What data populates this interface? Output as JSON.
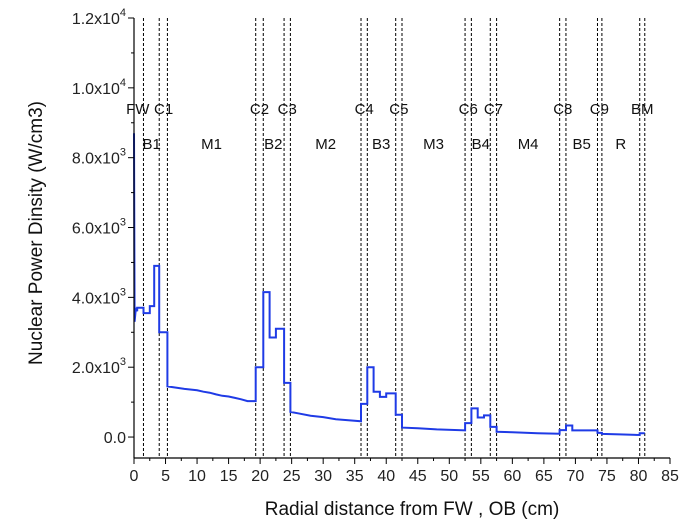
{
  "chart_data": {
    "type": "line",
    "title": "",
    "xlabel": "Radial distance from FW , OB (cm)",
    "ylabel": "Nuclear Power Dinsity (W/cm3)",
    "xlim": [
      0,
      85
    ],
    "ylim": [
      -600,
      12000
    ],
    "xticks": [
      0,
      5,
      10,
      15,
      20,
      25,
      30,
      35,
      40,
      45,
      50,
      55,
      60,
      65,
      70,
      75,
      80,
      85
    ],
    "yticks": [
      {
        "value": 0,
        "mantissa": "0.0",
        "exp": ""
      },
      {
        "value": 2000,
        "mantissa": "2.0x10",
        "exp": "3"
      },
      {
        "value": 4000,
        "mantissa": "4.0x10",
        "exp": "3"
      },
      {
        "value": 6000,
        "mantissa": "6.0x10",
        "exp": "3"
      },
      {
        "value": 8000,
        "mantissa": "8.0x10",
        "exp": "3"
      },
      {
        "value": 10000,
        "mantissa": "1.0x10",
        "exp": "4"
      },
      {
        "value": 12000,
        "mantissa": "1.2x10",
        "exp": "4"
      }
    ],
    "boundaries": [
      1.5,
      4,
      5.3,
      19.3,
      20.5,
      23.8,
      24.8,
      36,
      37,
      41.5,
      42.5,
      52.5,
      53.5,
      56.5,
      57.5,
      67.5,
      68.5,
      73.5,
      74.2,
      80.2,
      81
    ],
    "top_labels": [
      {
        "text": "FW",
        "x": 0.6
      },
      {
        "text": "C1",
        "x": 4.7
      },
      {
        "text": "C2",
        "x": 19.9
      },
      {
        "text": "C3",
        "x": 24.3
      },
      {
        "text": "C4",
        "x": 36.5
      },
      {
        "text": "C5",
        "x": 42.0
      },
      {
        "text": "C6",
        "x": 53.0
      },
      {
        "text": "C7",
        "x": 57.0
      },
      {
        "text": "C8",
        "x": 68.0
      },
      {
        "text": "C9",
        "x": 73.8
      },
      {
        "text": "BM",
        "x": 80.6
      }
    ],
    "region_labels": [
      {
        "text": "B1",
        "x": 2.8
      },
      {
        "text": "M1",
        "x": 12.3
      },
      {
        "text": "B2",
        "x": 22.1
      },
      {
        "text": "M2",
        "x": 30.4
      },
      {
        "text": "B3",
        "x": 39.2
      },
      {
        "text": "M3",
        "x": 47.5
      },
      {
        "text": "B4",
        "x": 55.0
      },
      {
        "text": "M4",
        "x": 62.5
      },
      {
        "text": "B5",
        "x": 71.0
      },
      {
        "text": "R",
        "x": 77.2
      }
    ],
    "series": [
      {
        "color": "#1f3be6",
        "x": [
          0,
          0.1,
          0.3,
          0.5,
          0.5,
          1.5,
          1.5,
          2.5,
          2.5,
          3.2,
          3.2,
          4.0,
          4.0,
          5.3,
          5.3,
          8.0,
          10.0,
          11.0,
          12.0,
          13.0,
          14.0,
          15.0,
          16.0,
          17.0,
          18.0,
          19.3,
          19.3,
          20.5,
          20.5,
          21.5,
          21.5,
          22.5,
          22.5,
          23.8,
          23.8,
          24.8,
          24.8,
          26.0,
          28.0,
          30.0,
          32.0,
          34.0,
          36.0,
          36.0,
          37.0,
          37.0,
          38.0,
          38.0,
          39.0,
          39.0,
          40.0,
          40.0,
          41.5,
          41.5,
          42.5,
          42.5,
          45.0,
          48.0,
          52.5,
          52.5,
          53.5,
          53.5,
          54.5,
          54.5,
          55.5,
          55.5,
          56.5,
          56.5,
          57.5,
          57.5,
          60.0,
          64.0,
          67.5,
          67.5,
          68.5,
          68.5,
          69.5,
          69.5,
          73.5,
          73.5,
          74.2,
          74.2,
          77.0,
          80.2,
          80.2,
          81.0
        ],
        "y": [
          8700,
          3300,
          3700,
          3600,
          3700,
          3700,
          3550,
          3550,
          3750,
          3750,
          4900,
          4900,
          3000,
          3000,
          1450,
          1380,
          1340,
          1300,
          1270,
          1220,
          1180,
          1160,
          1120,
          1080,
          1030,
          1030,
          2000,
          2000,
          4150,
          4150,
          2850,
          2850,
          3100,
          3100,
          1550,
          1550,
          720,
          680,
          610,
          570,
          510,
          480,
          450,
          950,
          950,
          2000,
          2000,
          1300,
          1300,
          1150,
          1150,
          1250,
          1250,
          640,
          640,
          270,
          250,
          220,
          190,
          400,
          400,
          820,
          820,
          560,
          560,
          620,
          620,
          290,
          290,
          150,
          140,
          110,
          95,
          200,
          200,
          330,
          330,
          190,
          190,
          120,
          120,
          90,
          75,
          60,
          110,
          110
        ]
      }
    ]
  }
}
